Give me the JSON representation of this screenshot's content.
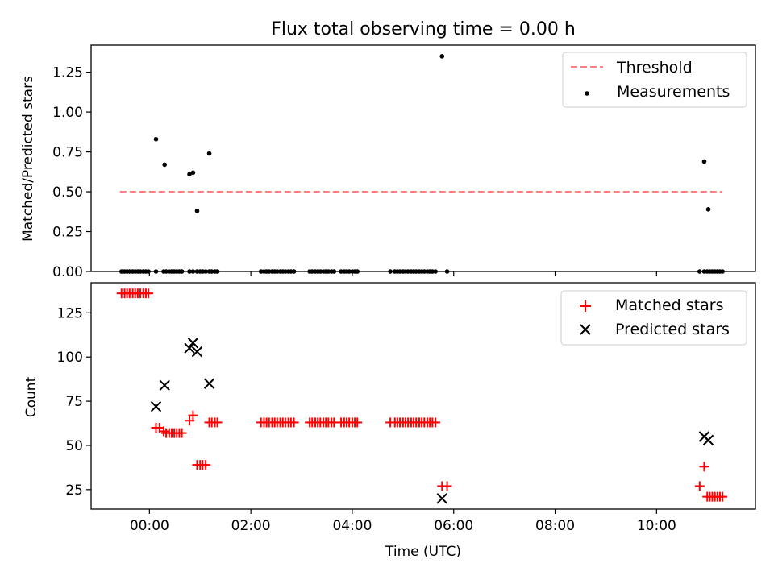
{
  "figure_title": "Flux total observing time = 0.00 h",
  "chart_data": [
    {
      "type": "scatter",
      "title": "Flux total observing time = 0.00 h",
      "xlabel": "",
      "ylabel": "Matched/Predicted stars",
      "x_unit": "hours (UTC)",
      "xlim": [
        -1.15,
        11.95
      ],
      "ylim": [
        0,
        1.42
      ],
      "yticks": [
        0,
        0.25,
        0.5,
        0.75,
        1.0,
        1.25
      ],
      "ytick_labels": [
        "0.00",
        "0.25",
        "0.50",
        "0.75",
        "1.00",
        "1.25"
      ],
      "legend_position": "top-right",
      "series": [
        {
          "name": "Threshold",
          "kind": "line",
          "style": "dashed",
          "color": "#ff7f7f",
          "x": [
            -0.58,
            11.3
          ],
          "y": [
            0.5,
            0.5
          ]
        },
        {
          "name": "Measurements",
          "kind": "scatter",
          "color": "#000000",
          "x": [
            -0.55,
            -0.49,
            -0.44,
            -0.39,
            -0.33,
            -0.28,
            -0.23,
            -0.18,
            -0.12,
            -0.07,
            -0.02,
            0.13,
            0.28,
            0.33,
            0.39,
            0.44,
            0.49,
            0.54,
            0.59,
            0.64,
            0.79,
            0.86,
            0.94,
            1.0,
            1.05,
            1.11,
            1.18,
            1.23,
            1.29,
            1.34,
            2.2,
            2.26,
            2.31,
            2.36,
            2.42,
            2.47,
            2.52,
            2.58,
            2.63,
            2.68,
            2.74,
            2.79,
            2.85,
            3.16,
            3.21,
            3.27,
            3.32,
            3.37,
            3.43,
            3.48,
            3.53,
            3.59,
            3.64,
            3.78,
            3.84,
            3.89,
            3.94,
            4.0,
            4.05,
            4.1,
            4.75,
            4.84,
            4.89,
            4.94,
            5.0,
            5.05,
            5.1,
            5.16,
            5.21,
            5.26,
            5.32,
            5.37,
            5.42,
            5.48,
            5.53,
            5.58,
            5.64,
            0.13,
            0.3,
            0.79,
            0.86,
            0.94,
            1.18,
            5.77,
            5.87,
            10.85,
            10.94,
            11.0,
            11.05,
            11.1,
            11.15,
            11.2,
            11.25,
            11.3,
            10.94,
            11.02
          ],
          "y": [
            0,
            0,
            0,
            0,
            0,
            0,
            0,
            0,
            0,
            0,
            0,
            0,
            0,
            0,
            0,
            0,
            0,
            0,
            0,
            0,
            0,
            0,
            0,
            0,
            0,
            0,
            0,
            0,
            0,
            0,
            0,
            0,
            0,
            0,
            0,
            0,
            0,
            0,
            0,
            0,
            0,
            0,
            0,
            0,
            0,
            0,
            0,
            0,
            0,
            0,
            0,
            0,
            0,
            0,
            0,
            0,
            0,
            0,
            0,
            0,
            0,
            0,
            0,
            0,
            0,
            0,
            0,
            0,
            0,
            0,
            0,
            0,
            0,
            0,
            0,
            0,
            0,
            0.83,
            0.67,
            0.61,
            0.62,
            0.38,
            0.74,
            1.35,
            0,
            0,
            0,
            0,
            0,
            0,
            0,
            0,
            0,
            0,
            0.69,
            0.39
          ]
        }
      ]
    },
    {
      "type": "scatter",
      "title": "",
      "xlabel": "Time (UTC)",
      "ylabel": "Count",
      "x_unit": "hours (UTC)",
      "xlim": [
        -1.15,
        11.95
      ],
      "ylim": [
        14,
        142
      ],
      "yticks": [
        25,
        50,
        75,
        100,
        125
      ],
      "ytick_labels": [
        "25",
        "50",
        "75",
        "100",
        "125"
      ],
      "xticks": [
        0,
        2,
        4,
        6,
        8,
        10
      ],
      "xtick_labels": [
        "00:00",
        "02:00",
        "04:00",
        "06:00",
        "08:00",
        "10:00"
      ],
      "legend_position": "top-right",
      "series": [
        {
          "name": "Matched stars",
          "kind": "plus",
          "color": "#ff0000",
          "x": [
            -0.55,
            -0.49,
            -0.44,
            -0.39,
            -0.33,
            -0.28,
            -0.23,
            -0.18,
            -0.12,
            -0.07,
            -0.02,
            0.13,
            0.2,
            0.28,
            0.33,
            0.39,
            0.44,
            0.49,
            0.54,
            0.59,
            0.64,
            0.79,
            0.86,
            0.94,
            1.0,
            1.05,
            1.11,
            1.18,
            1.23,
            1.29,
            1.34,
            2.2,
            2.26,
            2.31,
            2.36,
            2.42,
            2.47,
            2.52,
            2.58,
            2.63,
            2.68,
            2.74,
            2.79,
            2.85,
            3.16,
            3.21,
            3.27,
            3.32,
            3.37,
            3.43,
            3.48,
            3.53,
            3.59,
            3.64,
            3.78,
            3.84,
            3.89,
            3.94,
            4.0,
            4.05,
            4.1,
            4.75,
            4.84,
            4.89,
            4.94,
            5.0,
            5.05,
            5.1,
            5.16,
            5.21,
            5.26,
            5.32,
            5.37,
            5.42,
            5.48,
            5.53,
            5.58,
            5.64,
            5.77,
            5.87,
            10.85,
            10.94,
            11.0,
            11.05,
            11.1,
            11.15,
            11.2,
            11.25,
            11.3
          ],
          "y": [
            136,
            136,
            136,
            136,
            136,
            136,
            136,
            136,
            136,
            136,
            136,
            60,
            60,
            58,
            57,
            57,
            57,
            57,
            57,
            57,
            57,
            64,
            67,
            39,
            39,
            39,
            39,
            63,
            63,
            63,
            63,
            63,
            63,
            63,
            63,
            63,
            63,
            63,
            63,
            63,
            63,
            63,
            63,
            63,
            63,
            63,
            63,
            63,
            63,
            63,
            63,
            63,
            63,
            63,
            63,
            63,
            63,
            63,
            63,
            63,
            63,
            63,
            63,
            63,
            63,
            63,
            63,
            63,
            63,
            63,
            63,
            63,
            63,
            63,
            63,
            63,
            63,
            63,
            27,
            27,
            27,
            38,
            21,
            21,
            21,
            21,
            21,
            21,
            21
          ]
        },
        {
          "name": "Predicted stars",
          "kind": "x",
          "color": "#000000",
          "x": [
            0.13,
            0.3,
            0.79,
            0.86,
            0.94,
            1.18,
            5.77,
            10.94,
            11.02
          ],
          "y": [
            72,
            84,
            105,
            108,
            103,
            85,
            20,
            55,
            53
          ]
        }
      ]
    }
  ]
}
